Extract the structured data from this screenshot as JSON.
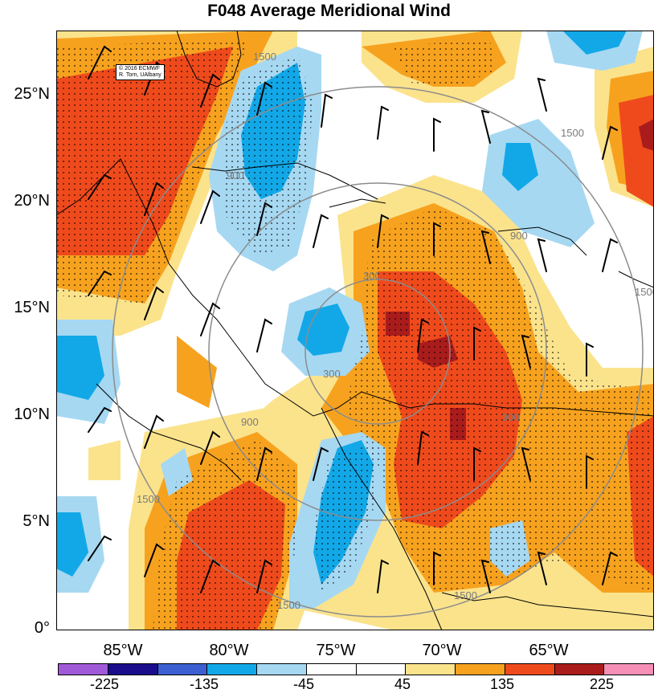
{
  "title": "F048 Average Meridional Wind",
  "credit": {
    "line1": "© 2016 ECMWF",
    "line2": "R. Torn, UAlbany"
  },
  "lat_labels": [
    "25°N",
    "20°N",
    "15°N",
    "10°N",
    "5°N",
    "0°"
  ],
  "lon_labels": [
    "85°W",
    "80°W",
    "75°W",
    "70°W",
    "65°W"
  ],
  "contour_labels": [
    "1500",
    "900",
    "300",
    "900",
    "1500",
    "900",
    "300",
    "900",
    "1500",
    "1500",
    "1500",
    "1500"
  ],
  "colorbar": {
    "colors": [
      "#a05ad8",
      "#1a0d8c",
      "#3c5fd2",
      "#12a8e8",
      "#a6d8f2",
      "#ffffff",
      "#ffffff",
      "#fbe38c",
      "#f7a21e",
      "#ef4a1c",
      "#aa1c1c",
      "#f58fb6"
    ],
    "labels": [
      "-225",
      "-135",
      "-45",
      "45",
      "135",
      "225"
    ]
  },
  "palette": {
    "strong_neg": "#12a8e8",
    "weak_neg": "#a6d8f2",
    "weak_pos": "#fbe38c",
    "mid_pos": "#f7a21e",
    "strong_pos": "#ef4a1c",
    "extreme_pos": "#aa1c1c"
  }
}
